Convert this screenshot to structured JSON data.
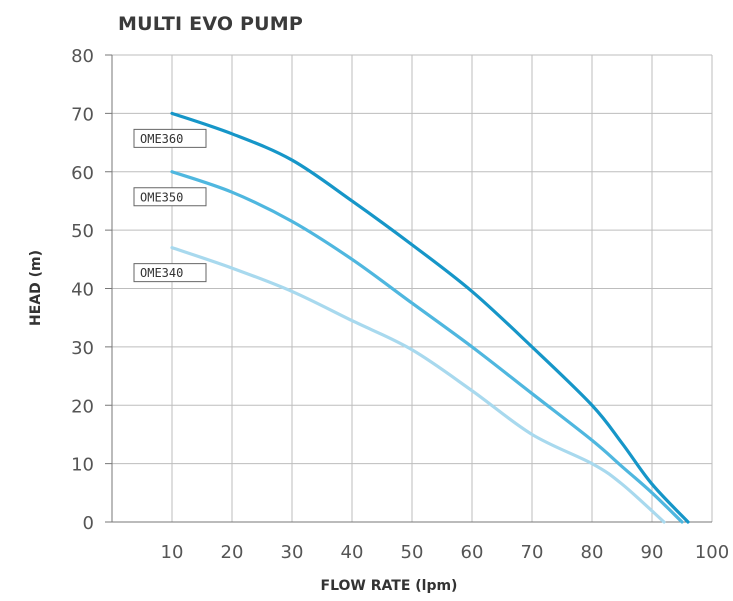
{
  "chart_data": {
    "type": "line",
    "title": "MULTI EVO PUMP",
    "xlabel": "FLOW RATE (lpm)",
    "ylabel": "HEAD (m)",
    "xlim": [
      0,
      100
    ],
    "ylim": [
      0,
      80
    ],
    "x_ticks": [
      "10",
      "20",
      "30",
      "40",
      "50",
      "60",
      "70",
      "80",
      "90",
      "100"
    ],
    "y_ticks": [
      "0",
      "10",
      "20",
      "30",
      "40",
      "50",
      "60",
      "70",
      "80"
    ],
    "grid": true,
    "series": [
      {
        "name": "OME360",
        "color": "#1696c8",
        "x": [
          10,
          20,
          30,
          40,
          50,
          60,
          70,
          80,
          85,
          90,
          96
        ],
        "y": [
          70,
          66.5,
          62,
          55,
          47.5,
          39.5,
          30,
          20,
          13.5,
          6.5,
          0
        ]
      },
      {
        "name": "OME350",
        "color": "#4fb7df",
        "x": [
          10,
          20,
          30,
          40,
          50,
          60,
          70,
          80,
          85,
          90,
          95
        ],
        "y": [
          60,
          56.5,
          51.5,
          45,
          37.5,
          30,
          22,
          14,
          9.5,
          5,
          0
        ]
      },
      {
        "name": "OME340",
        "color": "#a8d9ee",
        "x": [
          10,
          20,
          30,
          40,
          50,
          60,
          70,
          80,
          85,
          92
        ],
        "y": [
          47,
          43.5,
          39.5,
          34.5,
          29.5,
          22.5,
          15,
          10,
          6.5,
          0
        ]
      }
    ]
  }
}
